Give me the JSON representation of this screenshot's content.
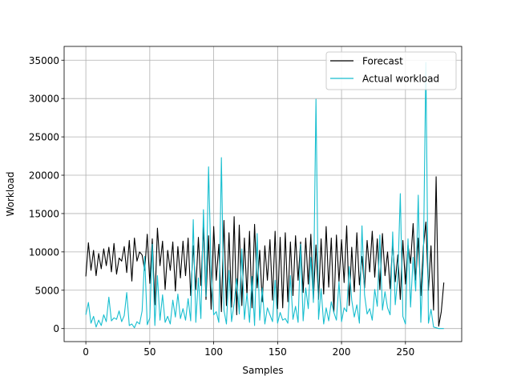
{
  "chart_data": {
    "type": "line",
    "title": "",
    "xlabel": "Samples",
    "ylabel": "Workload",
    "xlim": [
      -17,
      294
    ],
    "ylim": [
      -1700,
      36800
    ],
    "xticks": [
      0,
      50,
      100,
      150,
      200,
      250
    ],
    "yticks": [
      0,
      5000,
      10000,
      15000,
      20000,
      25000,
      30000,
      35000
    ],
    "grid": true,
    "legend": {
      "placement": "top-right",
      "frame": true
    },
    "colors": {
      "forecast": "#000000",
      "actual": "#17becf",
      "grid": "#b0b0b0"
    },
    "series": [
      {
        "name": "Forecast",
        "color": "#000000",
        "x": [
          0,
          2,
          4,
          6,
          8,
          10,
          12,
          14,
          16,
          18,
          20,
          22,
          24,
          26,
          28,
          30,
          32,
          34,
          36,
          38,
          40,
          42,
          44,
          46,
          48,
          50,
          52,
          54,
          56,
          58,
          60,
          62,
          64,
          66,
          68,
          70,
          72,
          74,
          76,
          78,
          80,
          82,
          84,
          86,
          88,
          90,
          92,
          94,
          96,
          98,
          100,
          102,
          104,
          106,
          108,
          110,
          112,
          114,
          116,
          118,
          120,
          122,
          124,
          126,
          128,
          130,
          132,
          134,
          136,
          138,
          140,
          142,
          144,
          146,
          148,
          150,
          152,
          154,
          156,
          158,
          160,
          162,
          164,
          166,
          168,
          170,
          172,
          174,
          176,
          178,
          180,
          182,
          184,
          186,
          188,
          190,
          192,
          194,
          196,
          198,
          200,
          202,
          204,
          206,
          208,
          210,
          212,
          214,
          216,
          218,
          220,
          222,
          224,
          226,
          228,
          230,
          232,
          234,
          236,
          238,
          240,
          242,
          244,
          246,
          248,
          250,
          252,
          254,
          256,
          258,
          260,
          262,
          264,
          266,
          268,
          270,
          272,
          274,
          276,
          278,
          280
        ],
        "values": [
          6800,
          11200,
          7600,
          10200,
          6900,
          9800,
          7800,
          10400,
          8200,
          10600,
          7400,
          11100,
          7100,
          9200,
          8800,
          10700,
          7300,
          11500,
          6200,
          11800,
          8800,
          10000,
          9600,
          7600,
          12300,
          5900,
          11700,
          3100,
          13100,
          8200,
          11400,
          5100,
          10200,
          7600,
          11300,
          4900,
          10700,
          6600,
          11400,
          6900,
          11800,
          4300,
          10800,
          5100,
          11900,
          5600,
          13200,
          3800,
          12100,
          2500,
          13300,
          6300,
          11000,
          2200,
          14100,
          3000,
          12500,
          2800,
          14600,
          1800,
          13500,
          3000,
          11800,
          4300,
          12700,
          2700,
          13600,
          5300,
          10200,
          3500,
          10800,
          6300,
          11600,
          3700,
          12700,
          2600,
          11900,
          2700,
          12500,
          3500,
          11300,
          4300,
          12100,
          6300,
          11300,
          4700,
          11800,
          5800,
          12300,
          3800,
          10900,
          3800,
          11700,
          4500,
          13300,
          5400,
          11800,
          2100,
          12200,
          6100,
          11600,
          6000,
          13400,
          3000,
          10600,
          4800,
          12500,
          5700,
          9400,
          5300,
          11500,
          7400,
          12700,
          6700,
          11700,
          5100,
          12400,
          6900,
          10000,
          5200,
          11200,
          6100,
          9600,
          3800,
          11500,
          5800,
          10900,
          8500,
          13700,
          6300,
          11800,
          4300,
          10700,
          13900,
          5000,
          10800,
          2400,
          19800,
          300,
          2200,
          6000
        ],
        "label_text": "Forecast"
      },
      {
        "name": "Actual workload",
        "color": "#17becf",
        "x": [
          0,
          2,
          4,
          6,
          8,
          10,
          12,
          14,
          16,
          18,
          20,
          22,
          24,
          26,
          28,
          30,
          32,
          34,
          36,
          38,
          40,
          42,
          44,
          46,
          48,
          50,
          52,
          54,
          56,
          58,
          60,
          62,
          64,
          66,
          68,
          70,
          72,
          74,
          76,
          78,
          80,
          82,
          84,
          86,
          88,
          90,
          92,
          94,
          96,
          98,
          100,
          102,
          104,
          106,
          108,
          110,
          112,
          114,
          116,
          118,
          120,
          122,
          124,
          126,
          128,
          130,
          132,
          134,
          136,
          138,
          140,
          142,
          144,
          146,
          148,
          150,
          152,
          154,
          156,
          158,
          160,
          162,
          164,
          166,
          168,
          170,
          172,
          174,
          176,
          178,
          180,
          182,
          184,
          186,
          188,
          190,
          192,
          194,
          196,
          198,
          200,
          202,
          204,
          206,
          208,
          210,
          212,
          214,
          216,
          218,
          220,
          222,
          224,
          226,
          228,
          230,
          232,
          234,
          236,
          238,
          240,
          242,
          244,
          246,
          248,
          250,
          252,
          254,
          256,
          258,
          260,
          262,
          264,
          266,
          268,
          270,
          272,
          274,
          276,
          278,
          280
        ],
        "values": [
          1800,
          3400,
          700,
          1600,
          200,
          1100,
          400,
          1800,
          900,
          4100,
          1000,
          1400,
          1200,
          2300,
          900,
          1700,
          4700,
          400,
          600,
          100,
          900,
          600,
          2300,
          9400,
          500,
          1400,
          11000,
          400,
          6900,
          1100,
          4400,
          800,
          1600,
          600,
          3700,
          1500,
          4500,
          1300,
          2600,
          1100,
          3900,
          1000,
          14200,
          800,
          6600,
          1300,
          15500,
          4200,
          21100,
          7400,
          1800,
          2200,
          800,
          22300,
          2400,
          600,
          7600,
          900,
          3300,
          6500,
          1900,
          10400,
          1200,
          4600,
          800,
          6800,
          400,
          12400,
          1100,
          5300,
          600,
          2700,
          1800,
          900,
          6300,
          700,
          2100,
          1100,
          1300,
          700,
          6900,
          1200,
          2900,
          800,
          11000,
          1000,
          5300,
          2600,
          9300,
          3400,
          29900,
          1200,
          5200,
          600,
          2700,
          1000,
          3500,
          2100,
          1100,
          6100,
          900,
          2700,
          2200,
          8100,
          3700,
          1500,
          3100,
          700,
          13400,
          4400,
          1900,
          2600,
          1100,
          5100,
          2900,
          12200,
          2400,
          4800,
          2700,
          1800,
          12600,
          3100,
          6700,
          17600,
          1600,
          600,
          11700,
          2800,
          9300,
          4900,
          17400,
          800,
          8800,
          34700,
          700,
          2500,
          200,
          100,
          0,
          0,
          0
        ],
        "label_text": "Actual workload"
      }
    ]
  }
}
